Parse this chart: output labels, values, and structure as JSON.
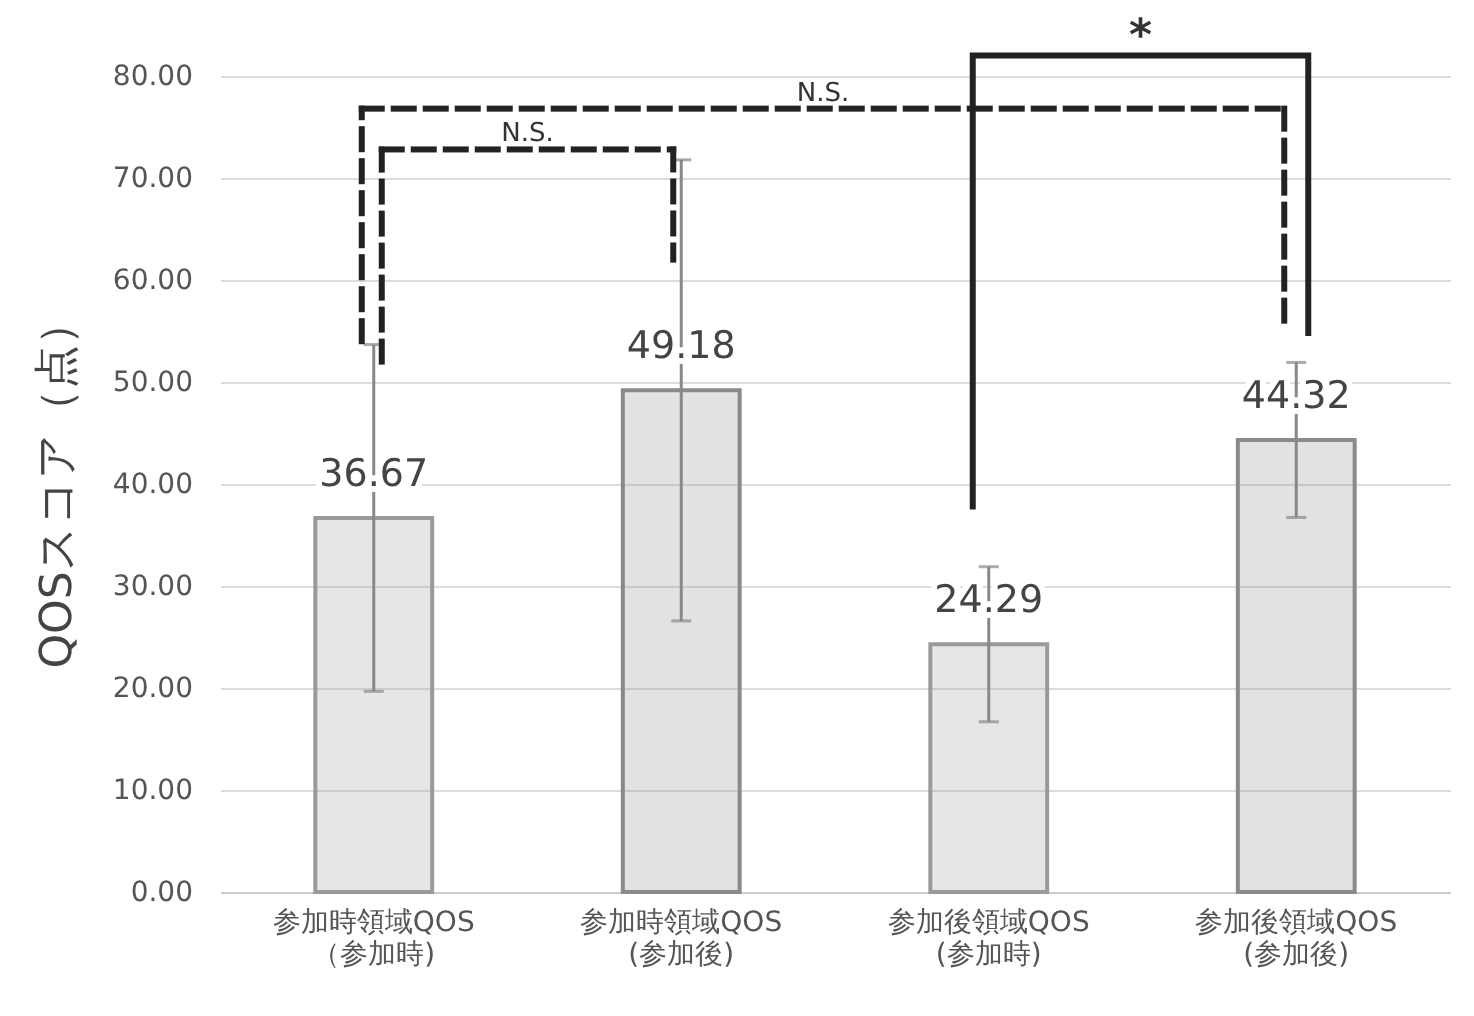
{
  "chart_data": {
    "type": "bar",
    "ylabel": "QOSスコア（点）",
    "categories": [
      "参加時領域QOS\n（参加時)",
      "参加時領域QOS\n(参加後)",
      "参加後領域QOS\n(参加時)",
      "参加後領域QOS\n(参加後)"
    ],
    "values": [
      36.67,
      49.18,
      24.29,
      44.32
    ],
    "errors": [
      17.0,
      22.6,
      7.6,
      7.6
    ],
    "colors": [
      "#9a9a9a",
      "#8a8a8a",
      "#9a9a9a",
      "#8a8a8a"
    ],
    "ylim": [
      0,
      80
    ],
    "yticks": [
      {
        "value": 0,
        "label": "0.00"
      },
      {
        "value": 10,
        "label": "10.00"
      },
      {
        "value": 20,
        "label": "20.00"
      },
      {
        "value": 30,
        "label": "30.00"
      },
      {
        "value": 40,
        "label": "40.00"
      },
      {
        "value": 50,
        "label": "50.00"
      },
      {
        "value": 60,
        "label": "60.00"
      },
      {
        "value": 70,
        "label": "70.00"
      },
      {
        "value": 80,
        "label": "80.00"
      }
    ],
    "grid": "y",
    "data_labels": true,
    "annotations": [
      "N.S.",
      "N.S.",
      "*"
    ]
  }
}
